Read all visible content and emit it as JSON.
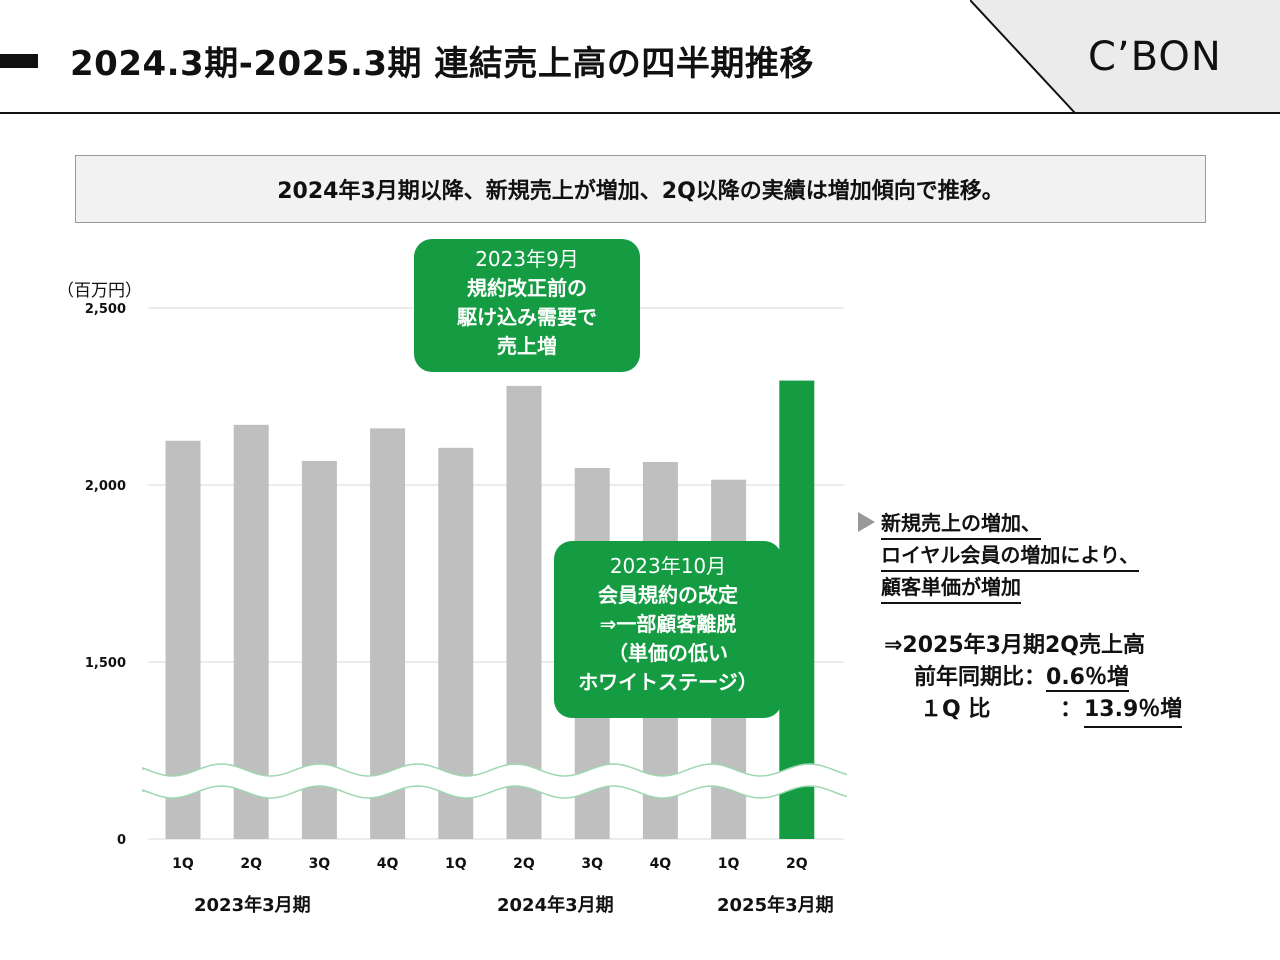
{
  "header": {
    "title": "2024.3期-2025.3期 連結売上高の四半期推移",
    "logo": "C’BON"
  },
  "summary": "2024年3月期以降、新規売上が増加、2Q以降の実績は増加傾向で推移。",
  "callouts": {
    "first": {
      "lines": [
        "2023年9月",
        "規約改正前の",
        "駆け込み需要で",
        "売上増"
      ]
    },
    "second": {
      "lines": [
        "2023年10月",
        "会員規約の改定",
        "⇒一部顧客離脱",
        "（単価の低い",
        "ホワイトステージ）"
      ]
    }
  },
  "notes": {
    "line1": "新規売上の増加、",
    "line2": "ロイヤル会員の増加により、",
    "line3": "顧客単価が増加"
  },
  "result": {
    "heading": "⇒2025年3月期2Q売上高",
    "yoy_label": "前年同期比：",
    "yoy_value": "0.6％増",
    "qoq_label": "１Q 比",
    "qoq_colon": "：",
    "qoq_value": "13.9％増"
  },
  "chart_data": {
    "type": "bar",
    "unit_label": "（百万円）",
    "categories": [
      "1Q",
      "2Q",
      "3Q",
      "4Q",
      "1Q",
      "2Q",
      "3Q",
      "4Q",
      "1Q",
      "2Q"
    ],
    "values": [
      2125,
      2170,
      2068,
      2160,
      2105,
      2280,
      2048,
      2065,
      2015,
      2295
    ],
    "highlight_index": 9,
    "y_ticks": [
      {
        "value": 0,
        "label": "0"
      },
      {
        "value": 1500,
        "label": "1,500"
      },
      {
        "value": 2000,
        "label": "2,000"
      },
      {
        "value": 2500,
        "label": "2,500"
      }
    ],
    "axis_break": true,
    "periods": [
      "2023年3月期",
      "2024年3月期",
      "2025年3月期"
    ],
    "colors": {
      "bar": "#bfbfbf",
      "highlight": "#159c42",
      "grid": "#d9d9d9"
    }
  }
}
